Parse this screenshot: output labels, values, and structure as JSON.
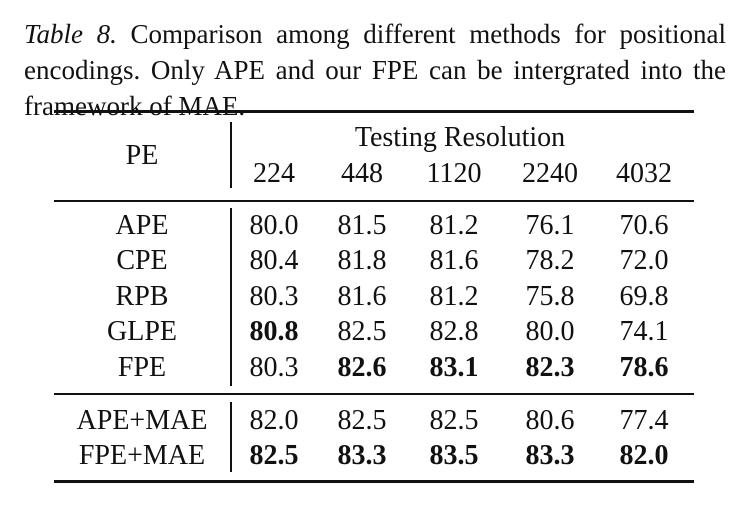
{
  "caption": {
    "label": "Table 8.",
    "text": "Comparison among different methods for positional encodings. Only APE and our FPE can be intergrated into the framework of MAE."
  },
  "table": {
    "pe_header": "PE",
    "group_header": "Testing Resolution",
    "columns": [
      "224",
      "448",
      "1120",
      "2240",
      "4032"
    ],
    "sections": [
      {
        "rows": [
          {
            "method": "APE",
            "values": [
              "80.0",
              "81.5",
              "81.2",
              "76.1",
              "70.6"
            ],
            "bold": [
              false,
              false,
              false,
              false,
              false
            ]
          },
          {
            "method": "CPE",
            "values": [
              "80.4",
              "81.8",
              "81.6",
              "78.2",
              "72.0"
            ],
            "bold": [
              false,
              false,
              false,
              false,
              false
            ]
          },
          {
            "method": "RPB",
            "values": [
              "80.3",
              "81.6",
              "81.2",
              "75.8",
              "69.8"
            ],
            "bold": [
              false,
              false,
              false,
              false,
              false
            ]
          },
          {
            "method": "GLPE",
            "values": [
              "80.8",
              "82.5",
              "82.8",
              "80.0",
              "74.1"
            ],
            "bold": [
              true,
              false,
              false,
              false,
              false
            ]
          },
          {
            "method": "FPE",
            "values": [
              "80.3",
              "82.6",
              "83.1",
              "82.3",
              "78.6"
            ],
            "bold": [
              false,
              true,
              true,
              true,
              true
            ]
          }
        ]
      },
      {
        "rows": [
          {
            "method": "APE+MAE",
            "values": [
              "82.0",
              "82.5",
              "82.5",
              "80.6",
              "77.4"
            ],
            "bold": [
              false,
              false,
              false,
              false,
              false
            ]
          },
          {
            "method": "FPE+MAE",
            "values": [
              "82.5",
              "83.3",
              "83.5",
              "83.3",
              "82.0"
            ],
            "bold": [
              true,
              true,
              true,
              true,
              true
            ]
          }
        ]
      }
    ]
  }
}
